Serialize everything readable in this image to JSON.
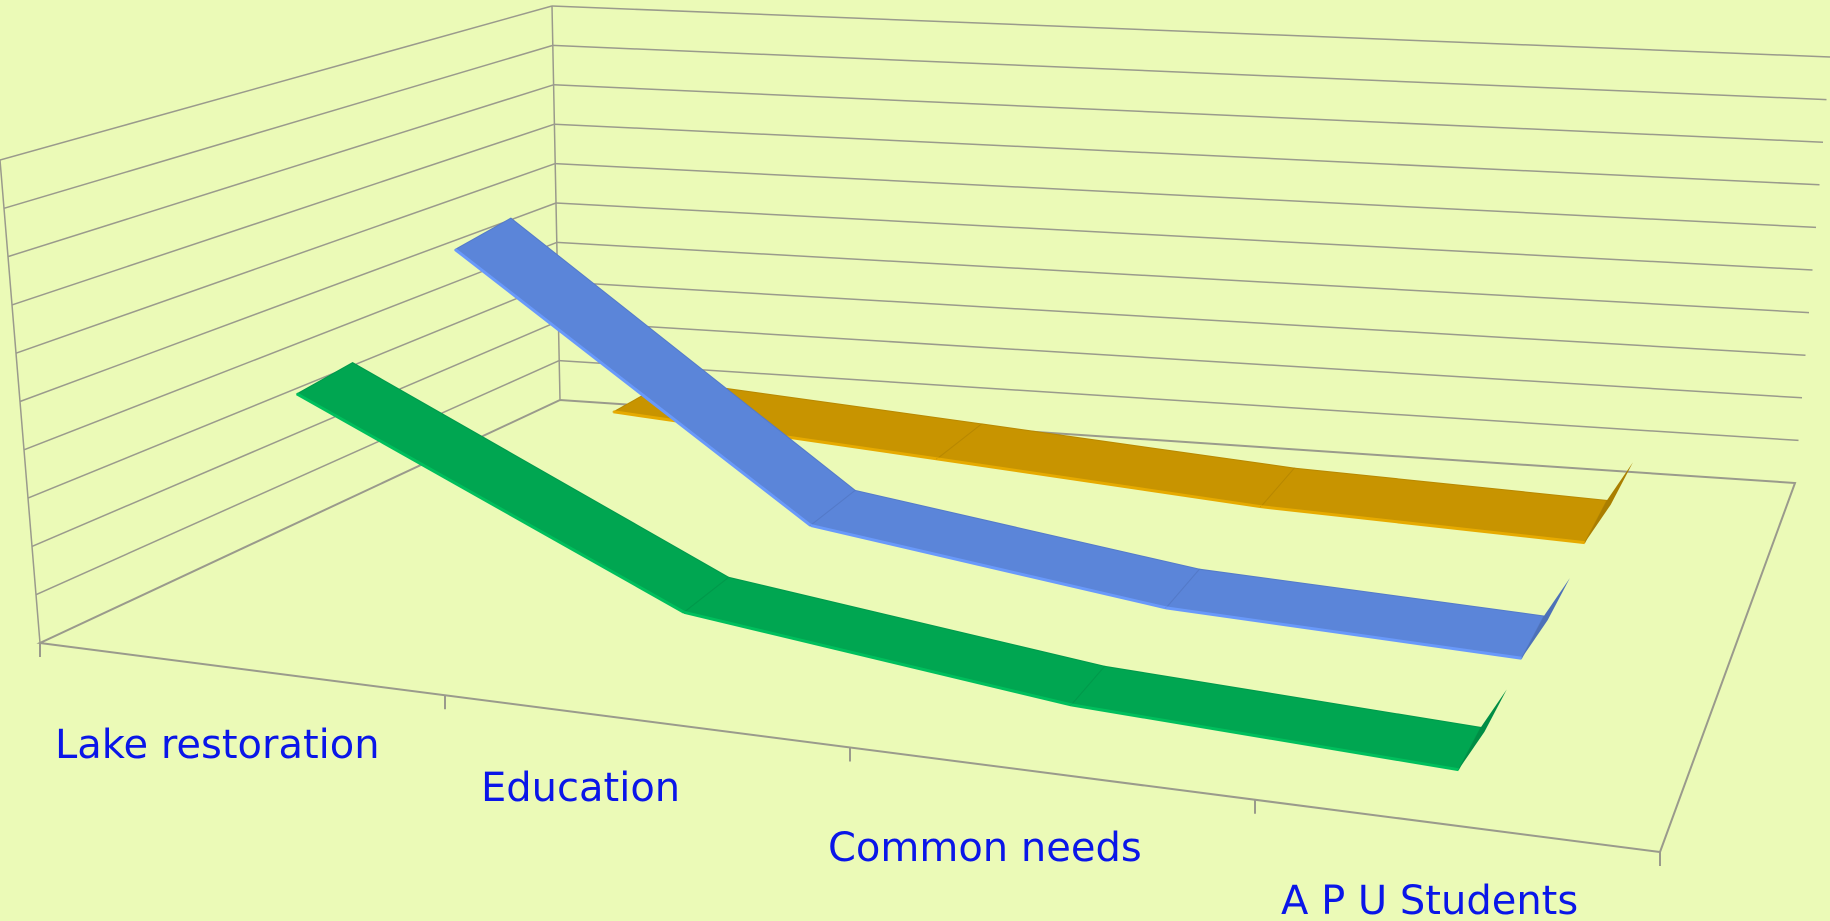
{
  "chart_data": {
    "type": "line",
    "style": "3d-ribbon",
    "title": "",
    "xlabel": "",
    "ylabel": "",
    "categories": [
      "Lake restoration",
      "Education",
      "Common needs",
      "A P U Students"
    ],
    "ylim": [
      0,
      10
    ],
    "grid": true,
    "legend": "none",
    "series": [
      {
        "values": [
          6.6,
          2.3,
          1.2,
          0.8
        ],
        "color": "#00a651"
      },
      {
        "values": [
          8.0,
          2.0,
          0.9,
          0.6
        ],
        "color": "#5b85d9"
      },
      {
        "values": [
          1.7,
          1.2,
          0.7,
          0.5
        ],
        "color": "#c89400"
      }
    ],
    "colors": {
      "background": "#ebfab7",
      "grid": "#9a9a8c",
      "label": "#0a16e8"
    }
  }
}
